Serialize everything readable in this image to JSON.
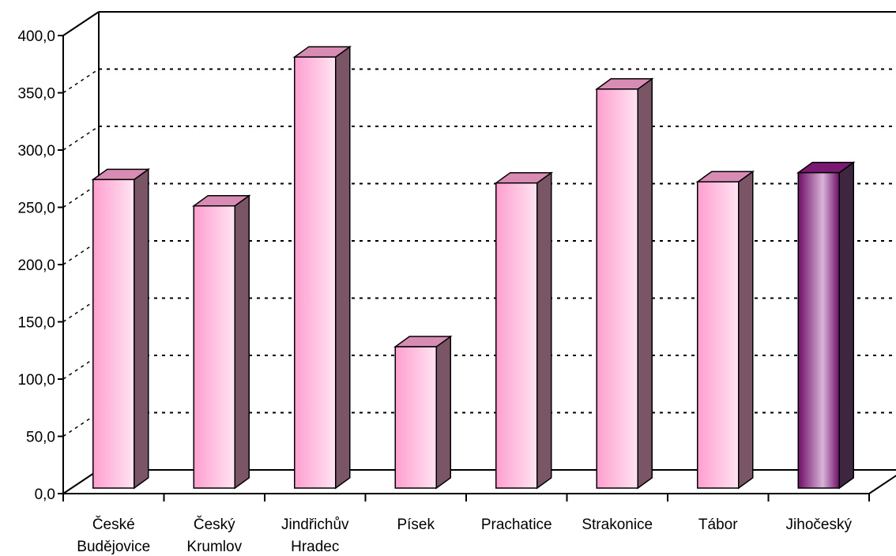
{
  "chart_data": {
    "type": "bar",
    "title": "",
    "xlabel": "",
    "ylabel": "",
    "categories": [
      [
        "České",
        "Budějovice"
      ],
      [
        "Český",
        "Krumlov"
      ],
      [
        "Jindřichův",
        "Hradec"
      ],
      [
        "Písek"
      ],
      [
        "Prachatice"
      ],
      [
        "Strakonice"
      ],
      [
        "Tábor"
      ],
      [
        "Jihočeský"
      ]
    ],
    "values": [
      277.0,
      254.0,
      384.0,
      131.0,
      274.0,
      356.0,
      275.0,
      283.0
    ],
    "highlight_index": 7,
    "ylim": [
      0,
      400
    ],
    "yticks": [
      "0,0",
      "50,0",
      "100,0",
      "150,0",
      "200,0",
      "250,0",
      "300,0",
      "350,0",
      "400,0"
    ],
    "grid": true,
    "legend": "none",
    "colors": {
      "bar_front_light": "#ffe4f2",
      "bar_front_dark": "#ff9fcf",
      "bar_top": "#d98cb3",
      "bar_side": "#7a5566",
      "highlight_front_dark": "#6e0f66",
      "highlight_front_light": "#d9b3d9",
      "highlight_top": "#7a1a72",
      "highlight_side": "#3e2640"
    }
  }
}
